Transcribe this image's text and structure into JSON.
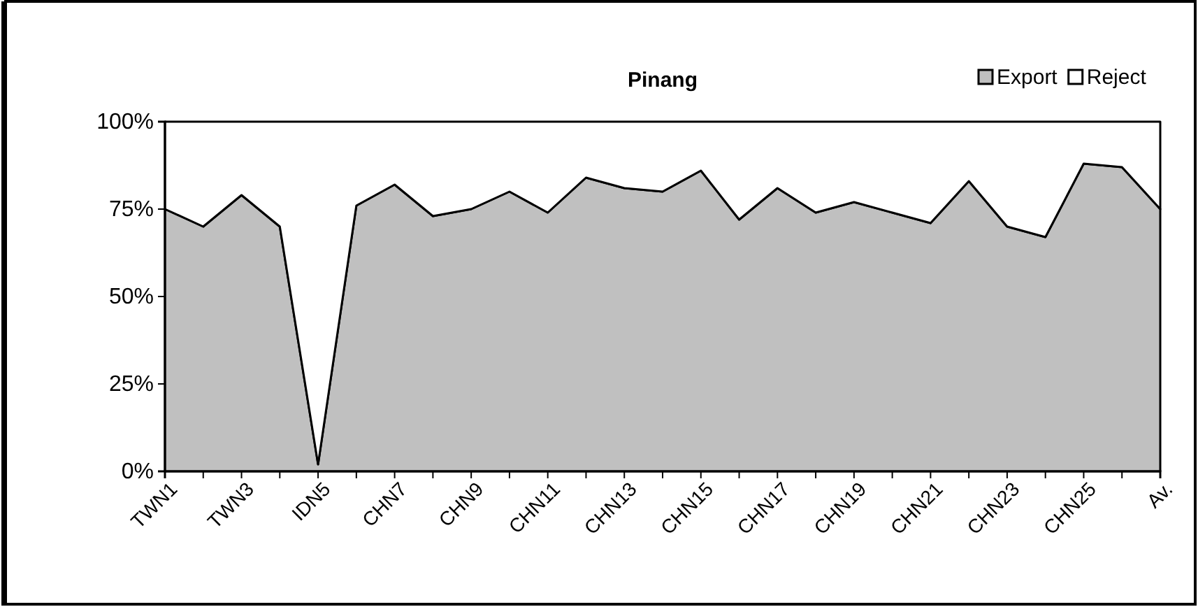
{
  "chart_data": {
    "type": "area",
    "stacked": true,
    "title": "Pinang",
    "categories": [
      "TWN1",
      null,
      "TWN3",
      null,
      "IDN5",
      null,
      "CHN7",
      null,
      "CHN9",
      null,
      "CHN11",
      null,
      "CHN13",
      null,
      "CHN15",
      null,
      "CHN17",
      null,
      "CHN19",
      null,
      "CHN21",
      null,
      "CHN23",
      null,
      "CHN25",
      null,
      "Av."
    ],
    "series": [
      {
        "name": "Export",
        "color": "#c0c0c0",
        "values": [
          75,
          70,
          79,
          70,
          2,
          76,
          82,
          73,
          75,
          80,
          74,
          84,
          81,
          80,
          86,
          72,
          81,
          74,
          77,
          74,
          71,
          83,
          70,
          67,
          88,
          87,
          75
        ]
      },
      {
        "name": "Reject",
        "color": "#ffffff",
        "values": [
          25,
          30,
          21,
          30,
          98,
          24,
          18,
          27,
          25,
          20,
          26,
          16,
          19,
          20,
          14,
          28,
          19,
          26,
          23,
          26,
          29,
          17,
          30,
          33,
          12,
          13,
          25
        ]
      }
    ],
    "ylim": [
      0,
      100
    ],
    "yticks": [
      {
        "value": 0,
        "label": "0%"
      },
      {
        "value": 25,
        "label": "25%"
      },
      {
        "value": 50,
        "label": "50%"
      },
      {
        "value": 75,
        "label": "75%"
      },
      {
        "value": 100,
        "label": "100%"
      }
    ],
    "grid": false,
    "legend": "top right"
  }
}
